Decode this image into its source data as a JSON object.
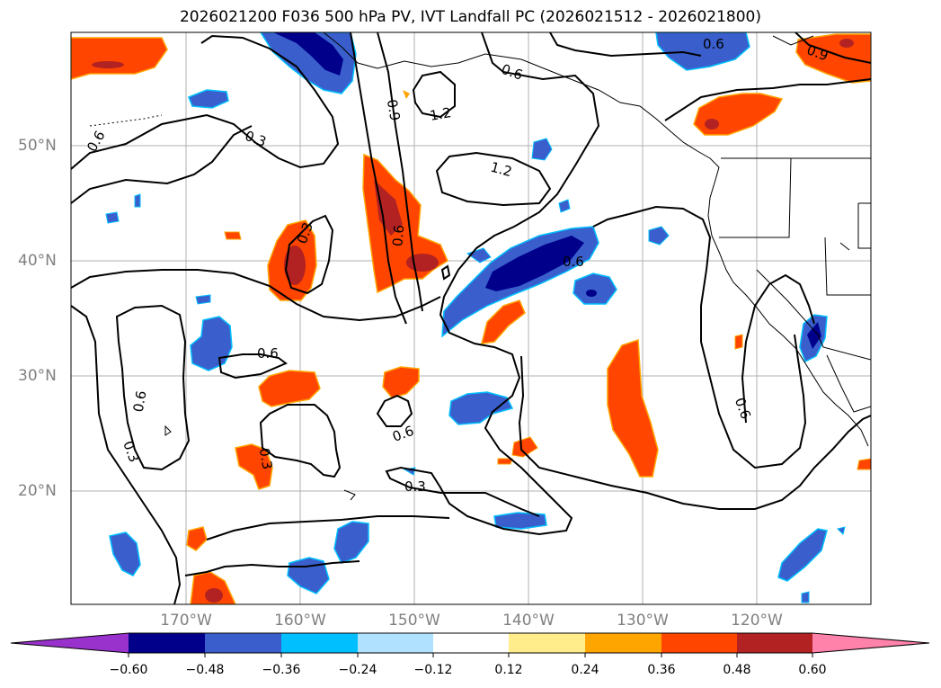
{
  "title": "2026021200 F036 500 hPa PV, IVT Landfall PC (2026021512 - 2026021800)",
  "map": {
    "lat_labels": [
      "50°N",
      "40°N",
      "30°N",
      "20°N"
    ],
    "lon_labels": [
      "170°W",
      "160°W",
      "150°W",
      "140°W",
      "130°W",
      "120°W"
    ],
    "contour_labels": [
      "0.6",
      "0.3",
      "0.9",
      "1.2",
      "1.2",
      "0.6",
      "0.6",
      "0.3",
      "0.6",
      "0.6",
      "0.6",
      "0.3",
      "0.3",
      "0.6",
      "0.3",
      "0.6",
      "0.9",
      "0.6"
    ],
    "shading_colors": {
      "dark_blue": "#00008b",
      "royal_blue": "#3a5fcd",
      "sky_blue": "#00bfff",
      "orange_red": "#ff4500",
      "firebrick": "#b22222"
    }
  },
  "colorbar": {
    "ticks": [
      "−0.60",
      "−0.48",
      "−0.36",
      "−0.24",
      "−0.12",
      "0.12",
      "0.24",
      "0.36",
      "0.48",
      "0.60"
    ],
    "colors": [
      "#9932cc",
      "#00008b",
      "#3a5fcd",
      "#00bfff",
      "#b0e2ff",
      "#ffffff",
      "#ffec8b",
      "#ffa500",
      "#ff4500",
      "#b22222",
      "#ff82ab"
    ]
  }
}
